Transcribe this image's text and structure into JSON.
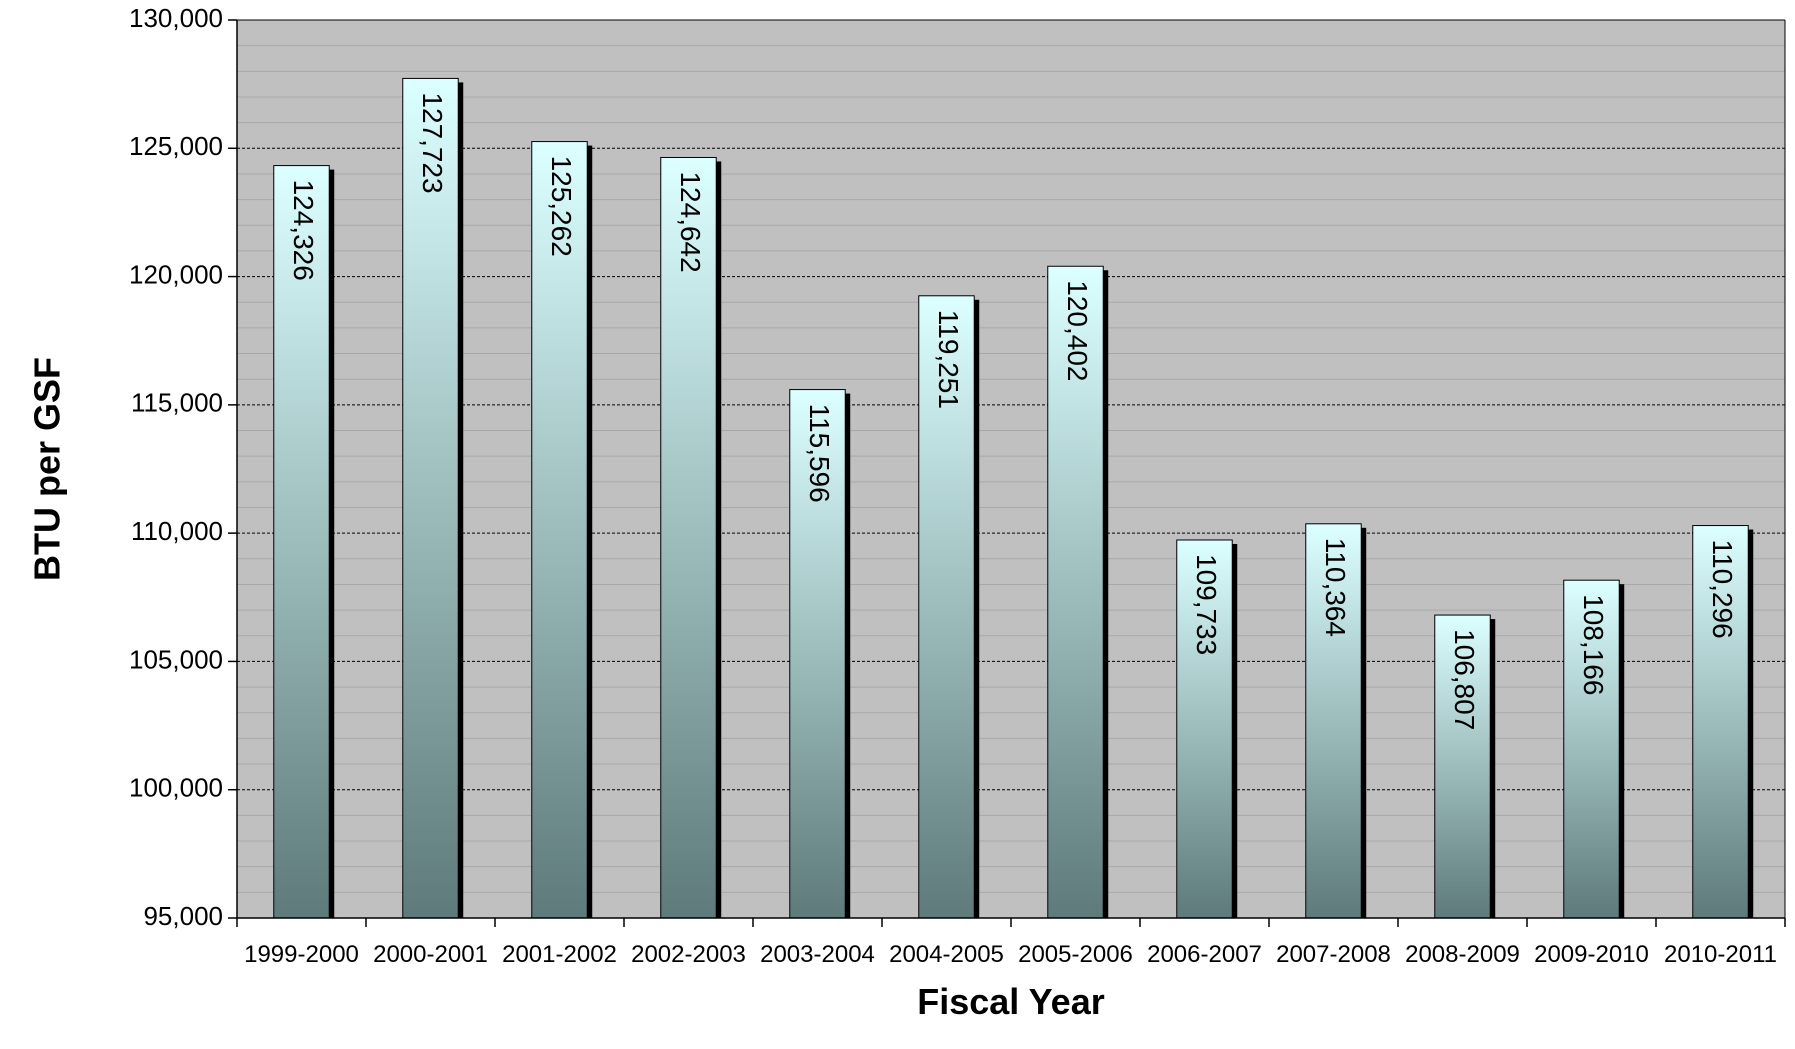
{
  "chart_data": {
    "type": "bar",
    "categories": [
      "1999-2000",
      "2000-2001",
      "2001-2002",
      "2002-2003",
      "2003-2004",
      "2004-2005",
      "2005-2006",
      "2006-2007",
      "2007-2008",
      "2008-2009",
      "2009-2010",
      "2010-2011"
    ],
    "values": [
      124326,
      127723,
      125262,
      124642,
      115596,
      119251,
      120402,
      109733,
      110364,
      106807,
      108166,
      110296
    ],
    "data_labels": [
      "124,326",
      "127,723",
      "125,262",
      "124,642",
      "115,596",
      "119,251",
      "120,402",
      "109,733",
      "110,364",
      "106,807",
      "108,166",
      "110,296"
    ],
    "title": "",
    "xlabel": "Fiscal Year",
    "ylabel": "BTU per GSF",
    "ylim": [
      95000,
      130000
    ],
    "yticks": [
      95000,
      100000,
      105000,
      110000,
      115000,
      120000,
      125000,
      130000
    ],
    "ytick_labels": [
      "95,000",
      "100,000",
      "105,000",
      "110,000",
      "115,000",
      "120,000",
      "125,000",
      "130,000"
    ],
    "grid": true,
    "legend": "none",
    "colors": {
      "plot_background": "#c0c0c0",
      "bar_top": "#dcffff",
      "bar_bottom": "#5e7a7a",
      "bar_shadow": "#000000",
      "gridline": "#000000"
    }
  }
}
